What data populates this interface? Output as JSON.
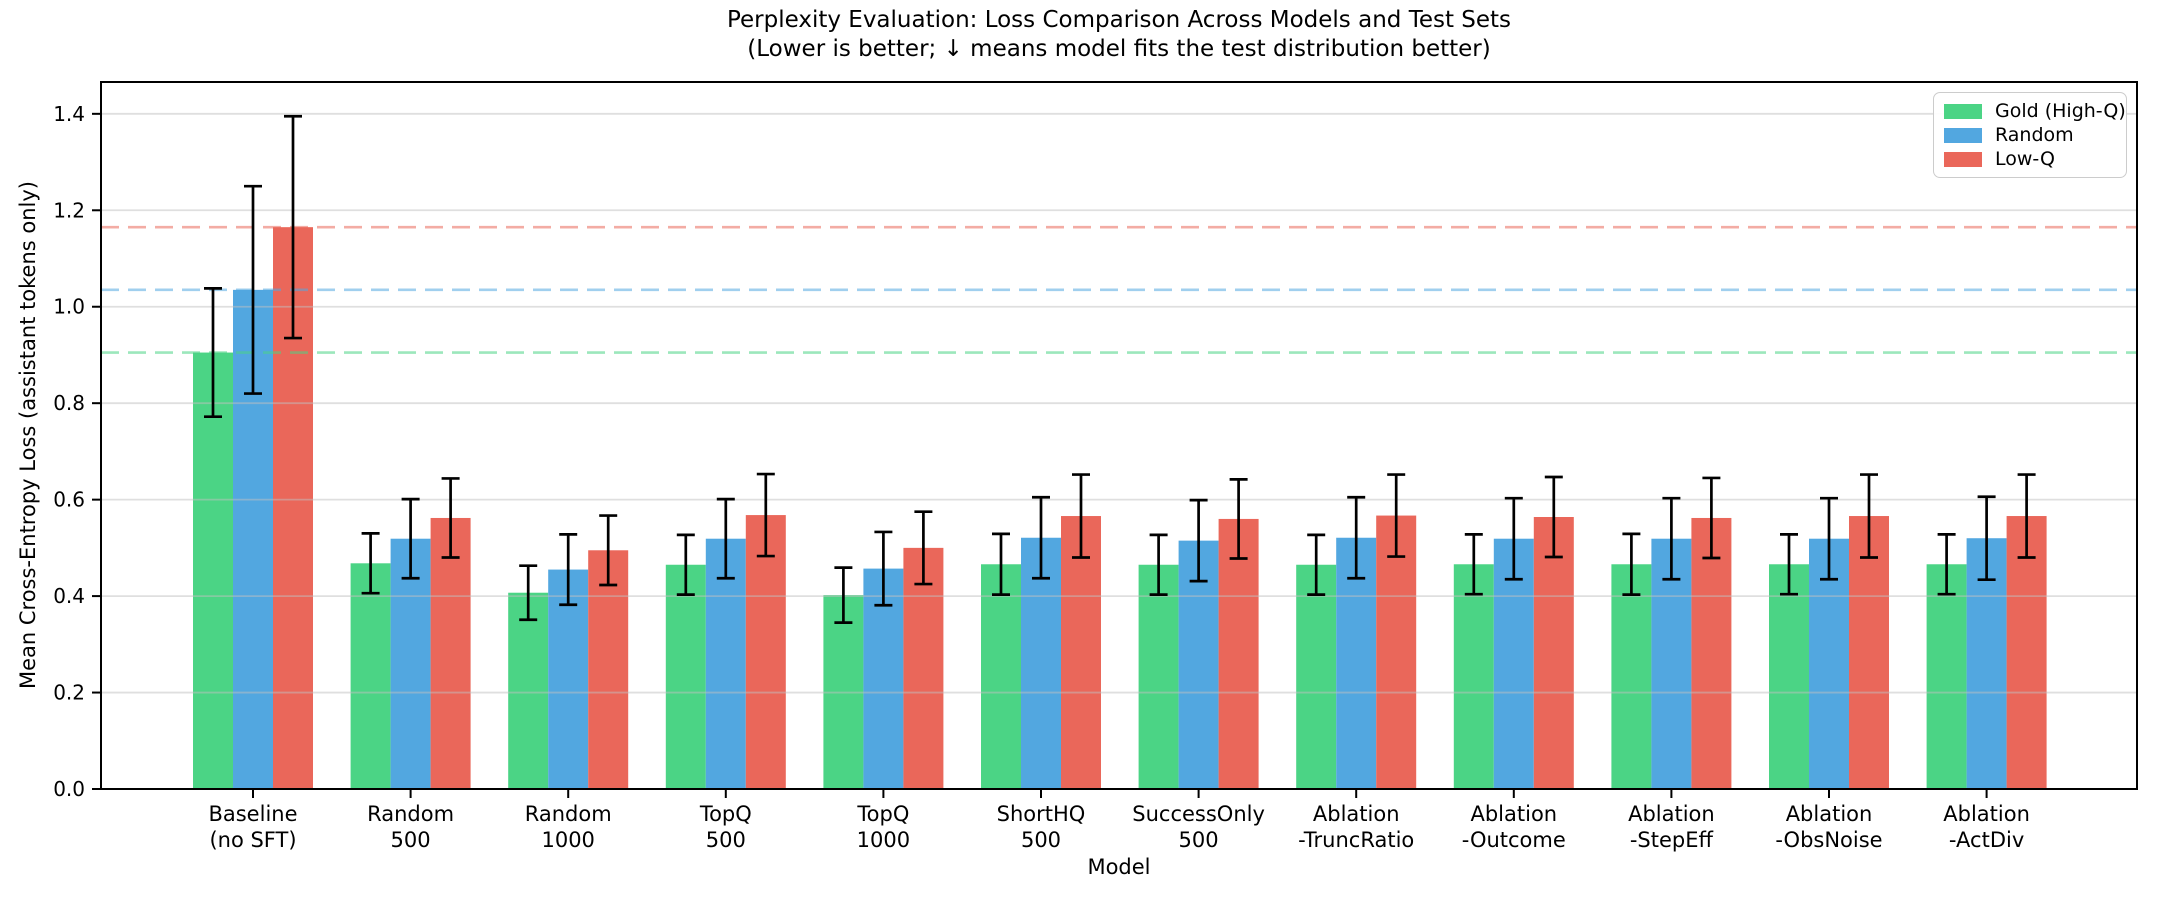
{
  "chart_data": {
    "type": "bar",
    "title": "Perplexity Evaluation: Loss Comparison Across Models and Test Sets",
    "subtitle": "(Lower is better; ↓ means model fits the test distribution better)",
    "xlabel": "Model",
    "ylabel": "Mean Cross-Entropy Loss (assistant tokens only)",
    "ylim": [
      0,
      1.466
    ],
    "yticks": [
      0.0,
      0.2,
      0.4,
      0.6,
      0.8,
      1.0,
      1.2,
      1.4
    ],
    "grid": "horizontal",
    "legend_position": "upper right",
    "categories": [
      [
        "Baseline",
        "(no SFT)"
      ],
      [
        "Random",
        "500"
      ],
      [
        "Random",
        "1000"
      ],
      [
        "TopQ",
        "500"
      ],
      [
        "TopQ",
        "1000"
      ],
      [
        "ShortHQ",
        "500"
      ],
      [
        "SuccessOnly",
        "500"
      ],
      [
        "Ablation",
        "-TruncRatio"
      ],
      [
        "Ablation",
        "-Outcome"
      ],
      [
        "Ablation",
        "-StepEff"
      ],
      [
        "Ablation",
        "-ObsNoise"
      ],
      [
        "Ablation",
        "-ActDiv"
      ]
    ],
    "series": [
      {
        "name": "Gold (High-Q)",
        "color": "#4BD485",
        "values": [
          0.905,
          0.468,
          0.407,
          0.465,
          0.402,
          0.466,
          0.465,
          0.465,
          0.466,
          0.466,
          0.466,
          0.466
        ],
        "errors": [
          0.133,
          0.062,
          0.056,
          0.062,
          0.057,
          0.063,
          0.062,
          0.062,
          0.062,
          0.063,
          0.062,
          0.062
        ]
      },
      {
        "name": "Random",
        "color": "#52A7E0",
        "values": [
          1.035,
          0.519,
          0.455,
          0.519,
          0.457,
          0.521,
          0.515,
          0.521,
          0.519,
          0.519,
          0.519,
          0.52
        ],
        "errors": [
          0.215,
          0.082,
          0.073,
          0.082,
          0.076,
          0.084,
          0.084,
          0.084,
          0.084,
          0.084,
          0.084,
          0.086
        ]
      },
      {
        "name": "Low-Q",
        "color": "#EA675A",
        "values": [
          1.165,
          0.562,
          0.495,
          0.568,
          0.5,
          0.566,
          0.56,
          0.567,
          0.564,
          0.562,
          0.566,
          0.566
        ],
        "errors": [
          0.23,
          0.082,
          0.072,
          0.085,
          0.075,
          0.086,
          0.082,
          0.085,
          0.083,
          0.083,
          0.086,
          0.086
        ]
      }
    ],
    "baseline_reference_lines": [
      {
        "name": "Gold (High-Q) baseline",
        "value": 0.905,
        "color": "#4BD485"
      },
      {
        "name": "Random baseline",
        "value": 1.035,
        "color": "#52A7E0"
      },
      {
        "name": "Low-Q baseline",
        "value": 1.165,
        "color": "#EA675A"
      }
    ]
  },
  "colors": {
    "background": "#ffffff",
    "axis": "#000000",
    "grid": "#bfbfbf",
    "error_bar": "#000000",
    "legend_border": "#cccccc",
    "text": "#000000"
  }
}
